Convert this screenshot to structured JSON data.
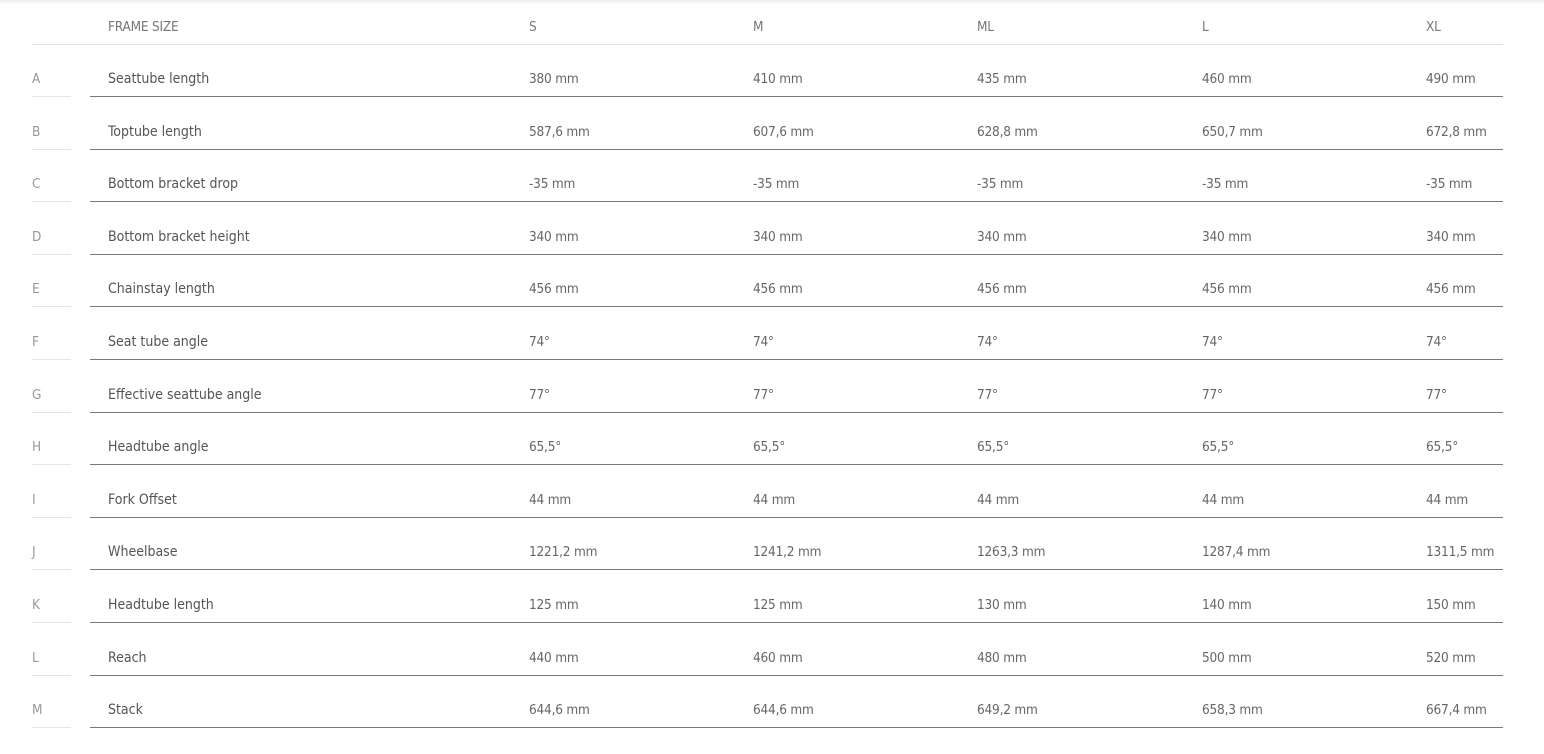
{
  "header": {
    "label": "FRAME SIZE",
    "sizes": [
      "S",
      "M",
      "ML",
      "L",
      "XL"
    ]
  },
  "rows": [
    {
      "letter": "A",
      "name": "Seattube length",
      "values": [
        "380 mm",
        "410 mm",
        "435 mm",
        "460 mm",
        "490 mm"
      ]
    },
    {
      "letter": "B",
      "name": "Toptube length",
      "values": [
        "587,6 mm",
        "607,6 mm",
        "628,8 mm",
        "650,7 mm",
        "672,8 mm"
      ]
    },
    {
      "letter": "C",
      "name": "Bottom bracket drop",
      "values": [
        "-35 mm",
        "-35 mm",
        "-35 mm",
        "-35 mm",
        "-35 mm"
      ]
    },
    {
      "letter": "D",
      "name": "Bottom bracket height",
      "values": [
        "340 mm",
        "340 mm",
        "340 mm",
        "340 mm",
        "340 mm"
      ]
    },
    {
      "letter": "E",
      "name": "Chainstay length",
      "values": [
        "456 mm",
        "456 mm",
        "456 mm",
        "456 mm",
        "456 mm"
      ]
    },
    {
      "letter": "F",
      "name": "Seat tube angle",
      "values": [
        "74°",
        "74°",
        "74°",
        "74°",
        "74°"
      ]
    },
    {
      "letter": "G",
      "name": "Effective seattube angle",
      "values": [
        "77°",
        "77°",
        "77°",
        "77°",
        "77°"
      ]
    },
    {
      "letter": "H",
      "name": "Headtube angle",
      "values": [
        "65,5°",
        "65,5°",
        "65,5°",
        "65,5°",
        "65,5°"
      ]
    },
    {
      "letter": "I",
      "name": "Fork Offset",
      "values": [
        "44 mm",
        "44 mm",
        "44 mm",
        "44 mm",
        "44 mm"
      ]
    },
    {
      "letter": "J",
      "name": "Wheelbase",
      "values": [
        "1221,2 mm",
        "1241,2 mm",
        "1263,3 mm",
        "1287,4 mm",
        "1311,5 mm"
      ]
    },
    {
      "letter": "K",
      "name": "Headtube length",
      "values": [
        "125 mm",
        "125 mm",
        "130 mm",
        "140 mm",
        "150 mm"
      ]
    },
    {
      "letter": "L",
      "name": "Reach",
      "values": [
        "440 mm",
        "460 mm",
        "480 mm",
        "500 mm",
        "520 mm"
      ]
    },
    {
      "letter": "M",
      "name": "Stack",
      "values": [
        "644,6 mm",
        "644,6 mm",
        "649,2 mm",
        "658,3 mm",
        "667,4 mm"
      ]
    }
  ]
}
